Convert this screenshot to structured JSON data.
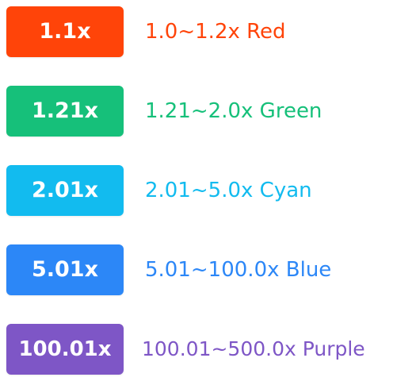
{
  "tiers": [
    {
      "badge": "1.1x",
      "range": "1.0~1.2x Red",
      "color": "#ff4409"
    },
    {
      "badge": "1.21x",
      "range": "1.21~2.0x Green",
      "color": "#16c07a"
    },
    {
      "badge": "2.01x",
      "range": "2.01~5.0x Cyan",
      "color": "#12bbef"
    },
    {
      "badge": "5.01x",
      "range": "5.01~100.0x Blue",
      "color": "#2c87f7"
    },
    {
      "badge": "100.01x",
      "range": "100.01~500.0x Purple",
      "color": "#7e56c6"
    }
  ]
}
